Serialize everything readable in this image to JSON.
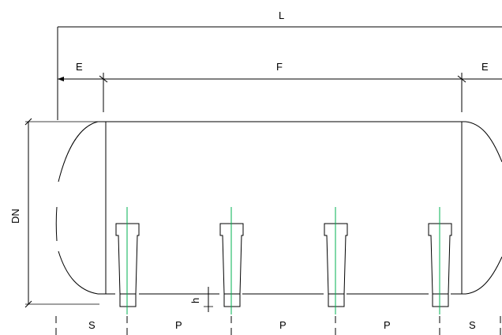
{
  "labels": {
    "length": "L",
    "end_left": "E",
    "straight": "F",
    "end_right": "E",
    "diameter": "DN",
    "height": "h",
    "support_left": "S",
    "pitch_1": "P",
    "pitch_2": "P",
    "pitch_3": "P",
    "support_right": "S"
  },
  "colors": {
    "line": "#000000",
    "centerline": "#00b050",
    "background": "#ffffff"
  },
  "nozzles": [
    "nozzle-1",
    "nozzle-2",
    "nozzle-3",
    "nozzle-4"
  ]
}
